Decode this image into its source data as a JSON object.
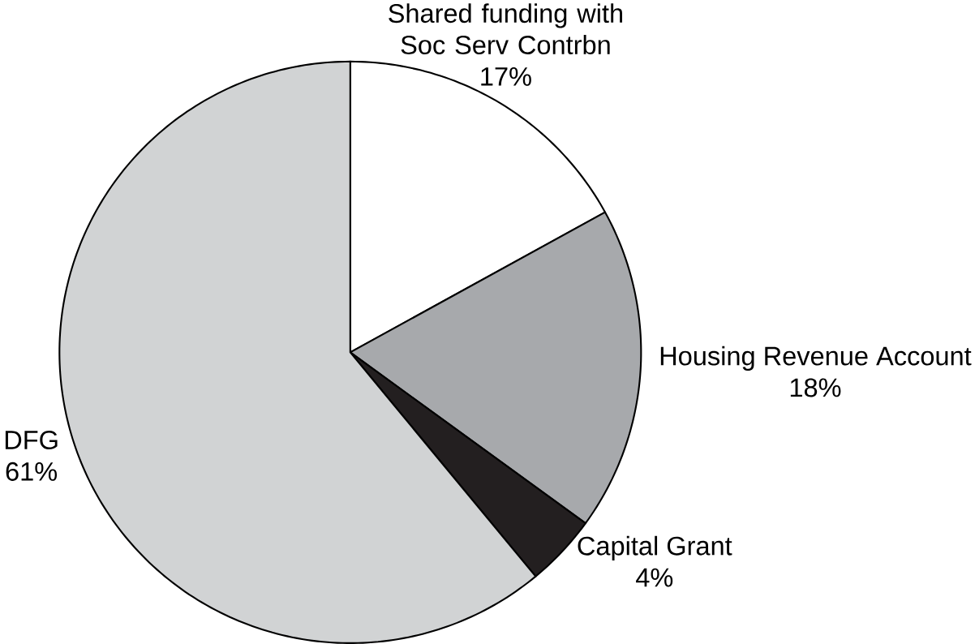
{
  "chart_data": {
    "type": "pie",
    "categories": [
      "Shared funding with Soc Serv Contrbn",
      "Housing Revenue Account",
      "Capital Grant",
      "DFG"
    ],
    "values": [
      17,
      18,
      4,
      61
    ],
    "value_labels": [
      "17%",
      "18%",
      "4%",
      "61%"
    ],
    "colors": [
      "#ffffff",
      "#a7a9ac",
      "#231f20",
      "#d1d3d4"
    ]
  }
}
